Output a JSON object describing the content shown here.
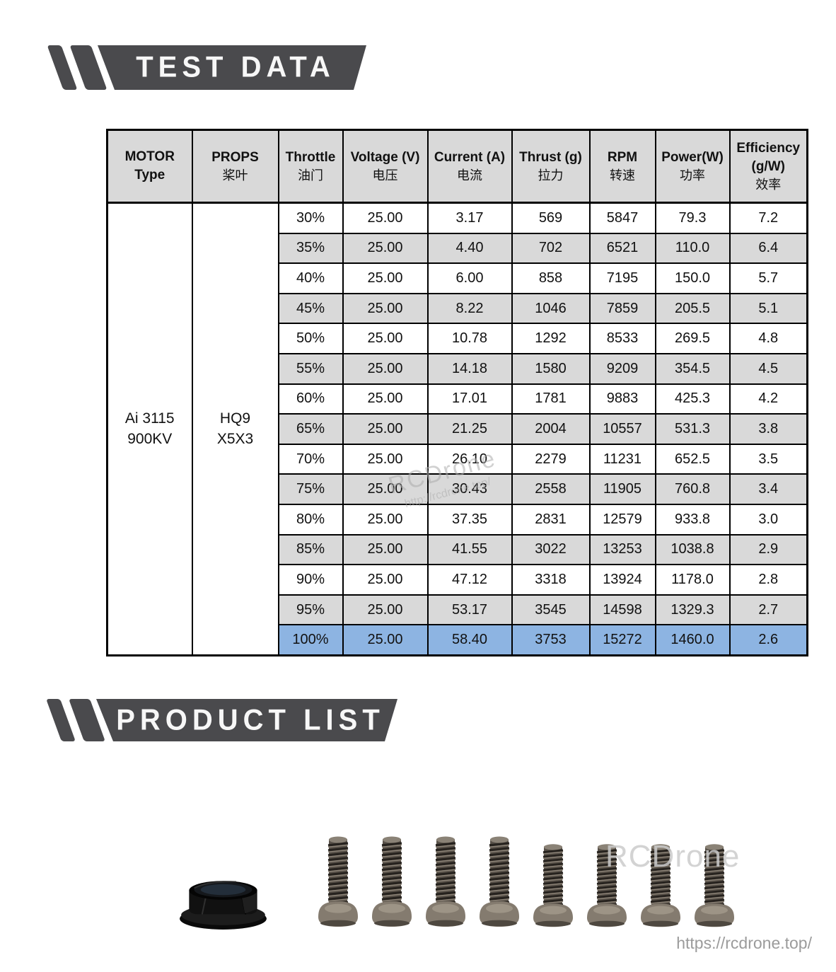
{
  "sections": {
    "test_data": "TEST DATA",
    "product_list": "PRODUCT LIST"
  },
  "table": {
    "headers": {
      "motor": {
        "line1": "MOTOR",
        "line2": "Type"
      },
      "props": {
        "line1": "PROPS",
        "line2": "桨叶"
      },
      "throttle": {
        "line1": "Throttle",
        "line2": "油门"
      },
      "voltage": {
        "line1": "Voltage (V)",
        "line2": "电压"
      },
      "current": {
        "line1": "Current (A)",
        "line2": "电流"
      },
      "thrust": {
        "line1": "Thrust (g)",
        "line2": "拉力"
      },
      "rpm": {
        "line1": "RPM",
        "line2": "转速"
      },
      "power": {
        "line1": "Power(W)",
        "line2": "功率"
      },
      "efficiency": {
        "line1": "Efficiency",
        "line2": "(g/W)",
        "line3": "效率"
      }
    },
    "motor_type": {
      "line1": "Ai 3115",
      "line2": "900KV"
    },
    "props_value": {
      "line1": "HQ9",
      "line2": "X5X3"
    },
    "rows": [
      [
        "30%",
        "25.00",
        "3.17",
        "569",
        "5847",
        "79.3",
        "7.2"
      ],
      [
        "35%",
        "25.00",
        "4.40",
        "702",
        "6521",
        "110.0",
        "6.4"
      ],
      [
        "40%",
        "25.00",
        "6.00",
        "858",
        "7195",
        "150.0",
        "5.7"
      ],
      [
        "45%",
        "25.00",
        "8.22",
        "1046",
        "7859",
        "205.5",
        "5.1"
      ],
      [
        "50%",
        "25.00",
        "10.78",
        "1292",
        "8533",
        "269.5",
        "4.8"
      ],
      [
        "55%",
        "25.00",
        "14.18",
        "1580",
        "9209",
        "354.5",
        "4.5"
      ],
      [
        "60%",
        "25.00",
        "17.01",
        "1781",
        "9883",
        "425.3",
        "4.2"
      ],
      [
        "65%",
        "25.00",
        "21.25",
        "2004",
        "10557",
        "531.3",
        "3.8"
      ],
      [
        "70%",
        "25.00",
        "26.10",
        "2279",
        "11231",
        "652.5",
        "3.5"
      ],
      [
        "75%",
        "25.00",
        "30.43",
        "2558",
        "11905",
        "760.8",
        "3.4"
      ],
      [
        "80%",
        "25.00",
        "37.35",
        "2831",
        "12579",
        "933.8",
        "3.0"
      ],
      [
        "85%",
        "25.00",
        "41.55",
        "3022",
        "13253",
        "1038.8",
        "2.9"
      ],
      [
        "90%",
        "25.00",
        "47.12",
        "3318",
        "13924",
        "1178.0",
        "2.8"
      ],
      [
        "95%",
        "25.00",
        "53.17",
        "3545",
        "14598",
        "1329.3",
        "2.7"
      ],
      [
        "100%",
        "25.00",
        "58.40",
        "3753",
        "15272",
        "1460.0",
        "2.6"
      ]
    ],
    "highlight_row_index": 14
  },
  "watermarks": {
    "table_line1": "RCDrone",
    "table_line2": "http://rcdrone.top/",
    "photo": "RCDrone"
  },
  "footer_url": "https://rcdrone.top/",
  "products": {
    "nut": "black-flanged-nylon-lock-nut",
    "screw_count": 8
  },
  "colors": {
    "banner_gray": "#4a4a4d",
    "header_gray": "#d9d9d9",
    "row_alt_gray": "#d9d9d9",
    "highlight_blue": "#8db4e2",
    "border_black": "#000000"
  }
}
